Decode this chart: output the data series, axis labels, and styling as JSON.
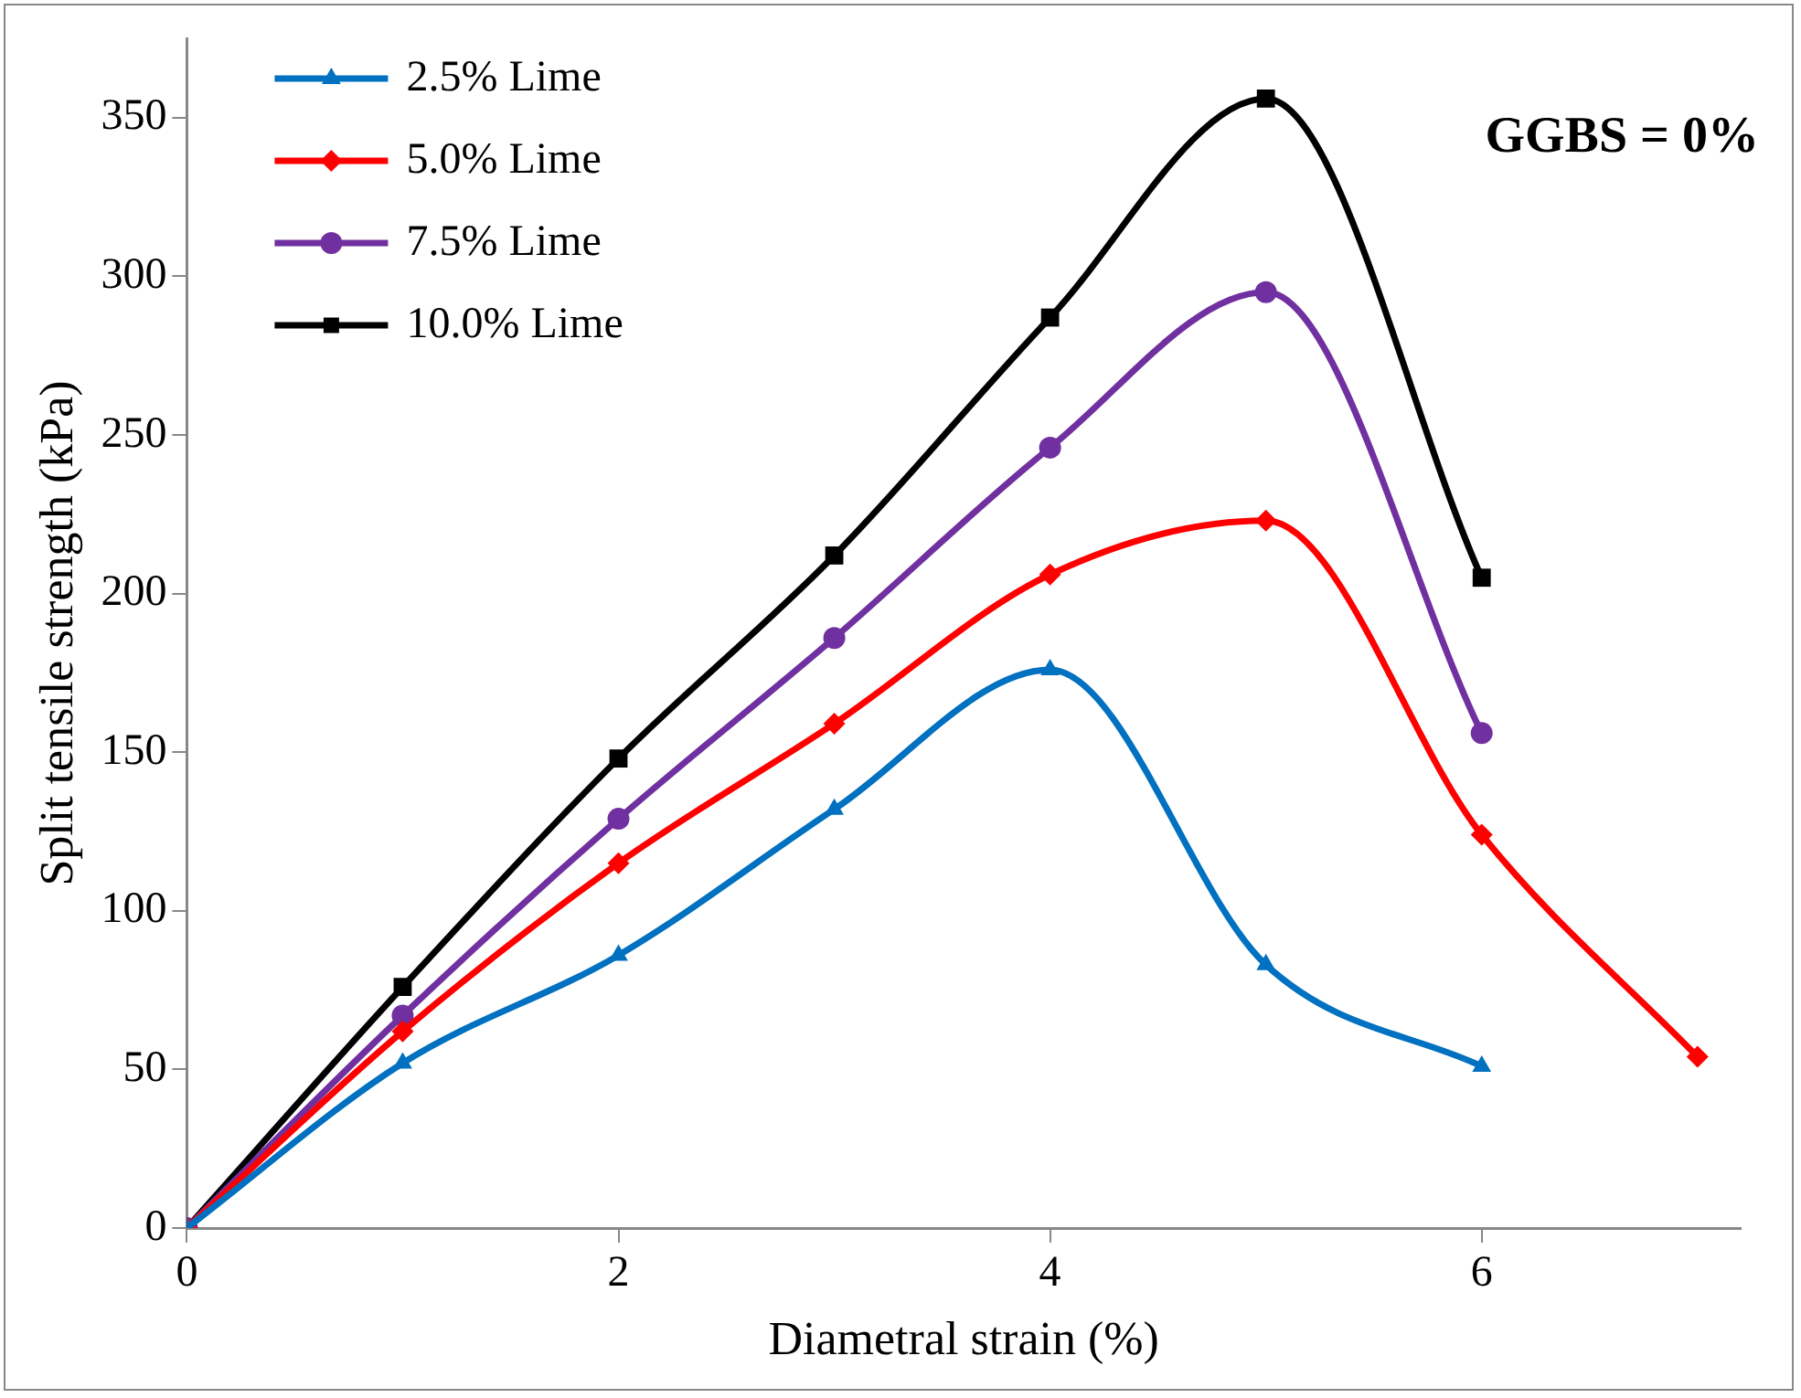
{
  "chart_data": {
    "type": "line",
    "xlabel": "Diametral strain (%)",
    "ylabel": "Split tensile strength (kPa)",
    "xlim": [
      0,
      7.2
    ],
    "xticks": [
      0,
      2,
      4,
      6
    ],
    "ylim": [
      0,
      375
    ],
    "yticks": [
      0,
      50,
      100,
      150,
      200,
      250,
      300,
      350
    ],
    "legend": "top left",
    "annotations": [
      "GGBS = 0%"
    ],
    "series": [
      {
        "name": "2.5% Lime",
        "color": "#0070c0",
        "marker": "triangle",
        "x": [
          0,
          1,
          2,
          3,
          4,
          5,
          6
        ],
        "values": [
          0,
          52,
          86,
          132,
          176,
          83,
          51
        ]
      },
      {
        "name": "5.0% Lime",
        "color": "#ff0000",
        "marker": "diamond",
        "x": [
          0,
          1,
          2,
          3,
          4,
          5,
          6,
          7
        ],
        "values": [
          0,
          62,
          115,
          159,
          206,
          223,
          124,
          54
        ]
      },
      {
        "name": "7.5% Lime",
        "color": "#7030a0",
        "marker": "circle",
        "x": [
          0,
          1,
          2,
          3,
          4,
          5,
          6
        ],
        "values": [
          0,
          67,
          129,
          186,
          246,
          295,
          156
        ]
      },
      {
        "name": "10.0% Lime",
        "color": "#000000",
        "marker": "square",
        "x": [
          0,
          1,
          2,
          3,
          4,
          5,
          6
        ],
        "values": [
          0,
          76,
          148,
          212,
          287,
          356,
          205
        ]
      }
    ]
  }
}
